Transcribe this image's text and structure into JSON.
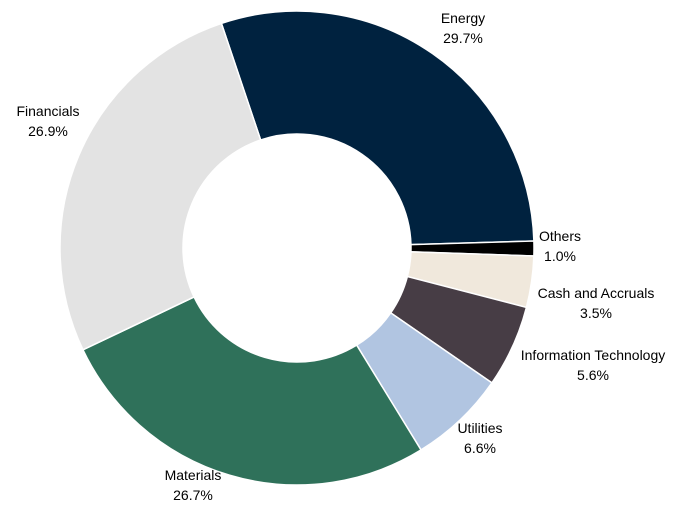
{
  "chart_data": {
    "type": "pie",
    "donut": true,
    "title": "",
    "legend": "none",
    "slices": [
      {
        "label": "Energy",
        "value": 29.7,
        "display": "29.7%",
        "color": "#00223f"
      },
      {
        "label": "Others",
        "value": 1.0,
        "display": "1.0%",
        "color": "#000000"
      },
      {
        "label": "Cash and Accruals",
        "value": 3.5,
        "display": "3.5%",
        "color": "#f0e8dc"
      },
      {
        "label": "Information Technology",
        "value": 5.6,
        "display": "5.6%",
        "color": "#473d45"
      },
      {
        "label": "Utilities",
        "value": 6.6,
        "display": "6.6%",
        "color": "#b1c5e1"
      },
      {
        "label": "Materials",
        "value": 26.7,
        "display": "26.7%",
        "color": "#2f715a"
      },
      {
        "label": "Financials",
        "value": 26.9,
        "display": "26.9%",
        "color": "#e3e3e3"
      }
    ]
  }
}
